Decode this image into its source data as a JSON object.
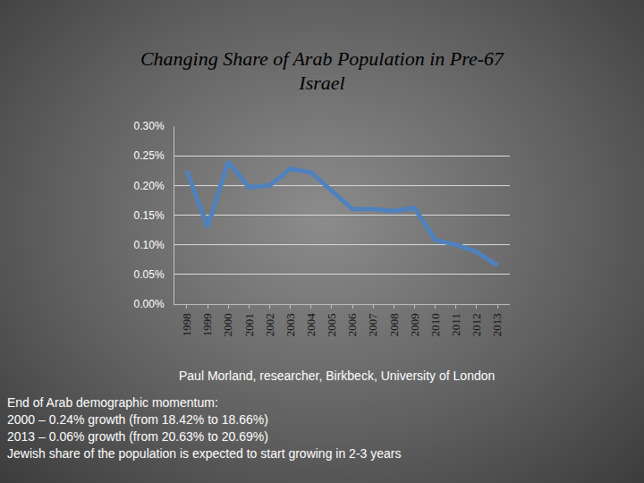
{
  "chart_data": {
    "type": "line",
    "title": "Changing Share of Arab Population in Pre-67\nIsrael",
    "categories": [
      "1998",
      "1999",
      "2000",
      "2001",
      "2002",
      "2003",
      "2004",
      "2005",
      "2006",
      "2007",
      "2008",
      "2009",
      "2010",
      "2011",
      "2012",
      "2013"
    ],
    "values": [
      0.225,
      0.13,
      0.24,
      0.197,
      0.2,
      0.228,
      0.222,
      0.19,
      0.16,
      0.16,
      0.157,
      0.162,
      0.108,
      0.1,
      0.088,
      0.065
    ],
    "color": "#4f81bd",
    "ylim": [
      0,
      0.3
    ],
    "yticks": [
      {
        "value": 0,
        "label": "0.00%"
      },
      {
        "value": 0.05,
        "label": "0.05%"
      },
      {
        "value": 0.1,
        "label": "0.10%"
      },
      {
        "value": 0.15,
        "label": "0.15%"
      },
      {
        "value": 0.2,
        "label": "0.20%"
      },
      {
        "value": 0.25,
        "label": "0.25%"
      },
      {
        "value": 0.3,
        "label": "0.30%"
      }
    ],
    "grid": true,
    "source": "Paul Morland, researcher, Birkbeck, University of London",
    "notes": [
      "End of Arab demographic momentum:",
      "2000 – 0.24% growth (from 18.42% to 18.66%)",
      "2013 – 0.06% growth (from 20.63% to 20.69%)",
      "Jewish share of the population is expected to start growing in 2-3 years"
    ]
  }
}
